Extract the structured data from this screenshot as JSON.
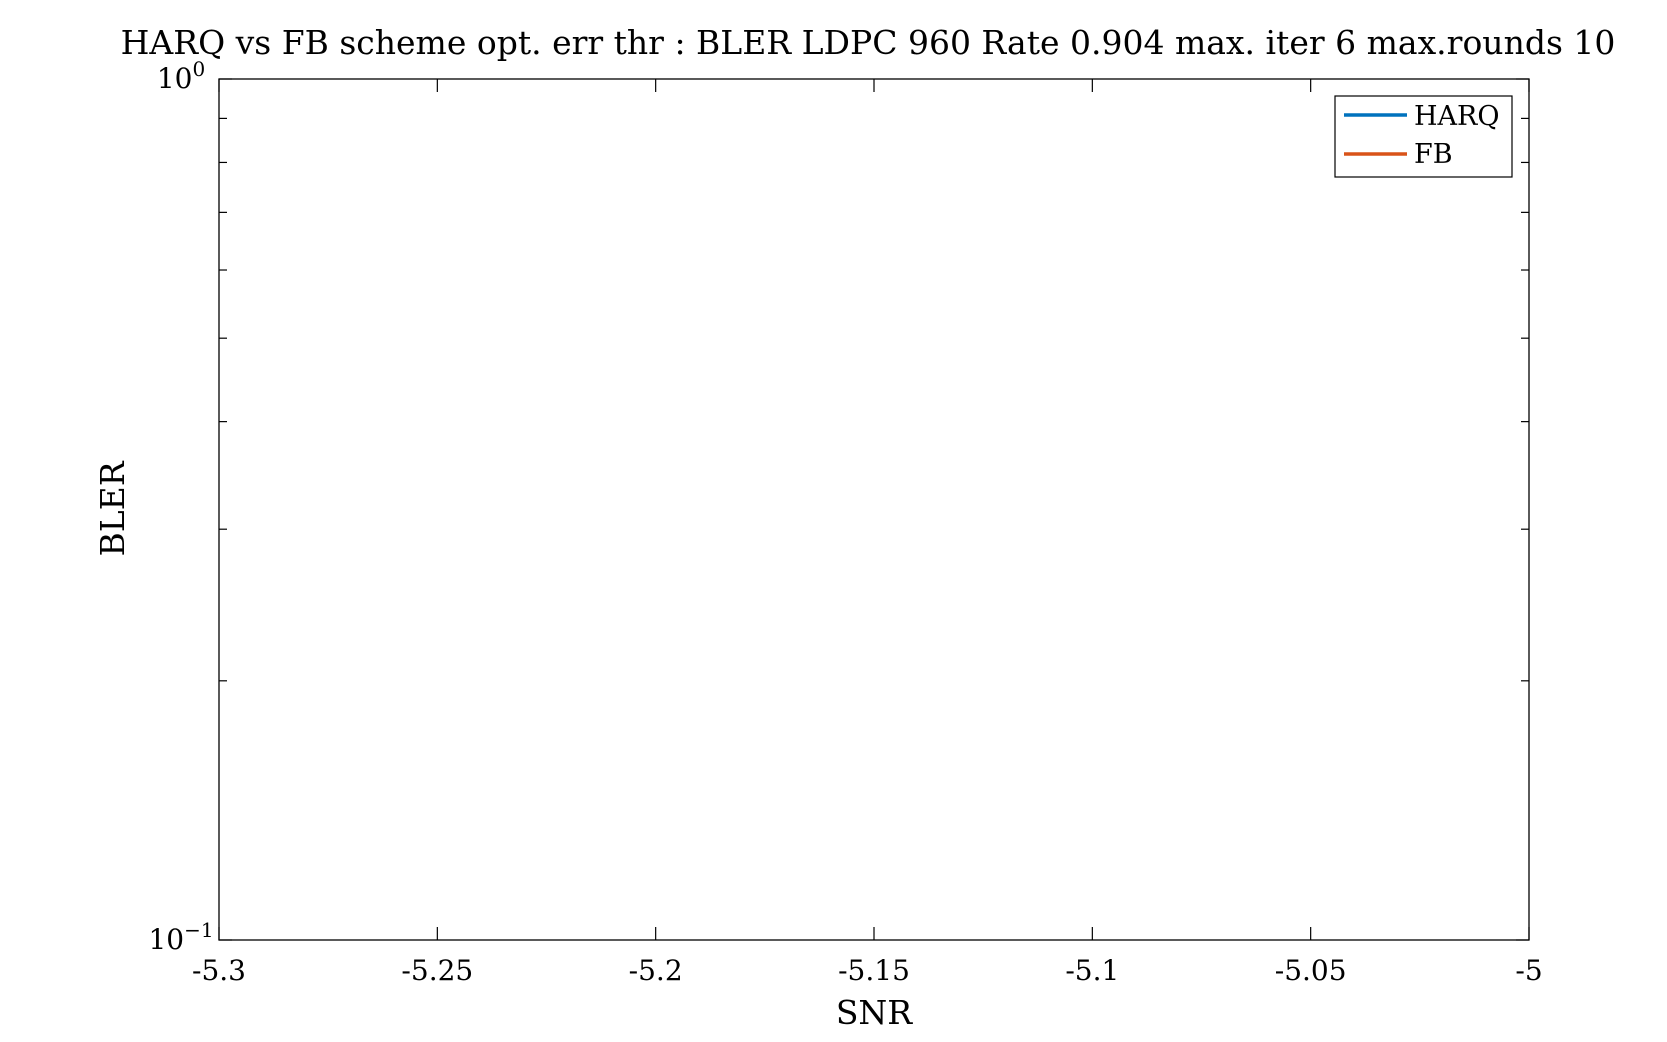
{
  "chart_data": {
    "type": "line",
    "title": "HARQ vs FB scheme opt. err thr : BLER LDPC 960 Rate 0.904 max. iter 6 max.rounds 10",
    "xlabel": "SNR",
    "ylabel": "BLER",
    "xlim": [
      -5.3,
      -5
    ],
    "ylim": [
      0.1,
      1
    ],
    "yscale": "log",
    "xticks": [
      -5.3,
      -5.25,
      -5.2,
      -5.15,
      -5.1,
      -5.05,
      -5
    ],
    "xtick_labels": [
      "-5.3",
      "-5.25",
      "-5.2",
      "-5.15",
      "-5.1",
      "-5.05",
      "-5"
    ],
    "ytick_major": [
      {
        "value": 0.1,
        "base": "10",
        "exp": "−1"
      },
      {
        "value": 1,
        "base": "10",
        "exp": "0"
      }
    ],
    "ytick_minor": [
      0.2,
      0.3,
      0.4,
      0.5,
      0.6,
      0.7,
      0.8,
      0.9
    ],
    "grid": false,
    "legend": "top-right",
    "series": [
      {
        "name": "HARQ",
        "color": "#0072BD",
        "x": [],
        "y": []
      },
      {
        "name": "FB",
        "color": "#D95319",
        "x": [],
        "y": []
      }
    ]
  }
}
